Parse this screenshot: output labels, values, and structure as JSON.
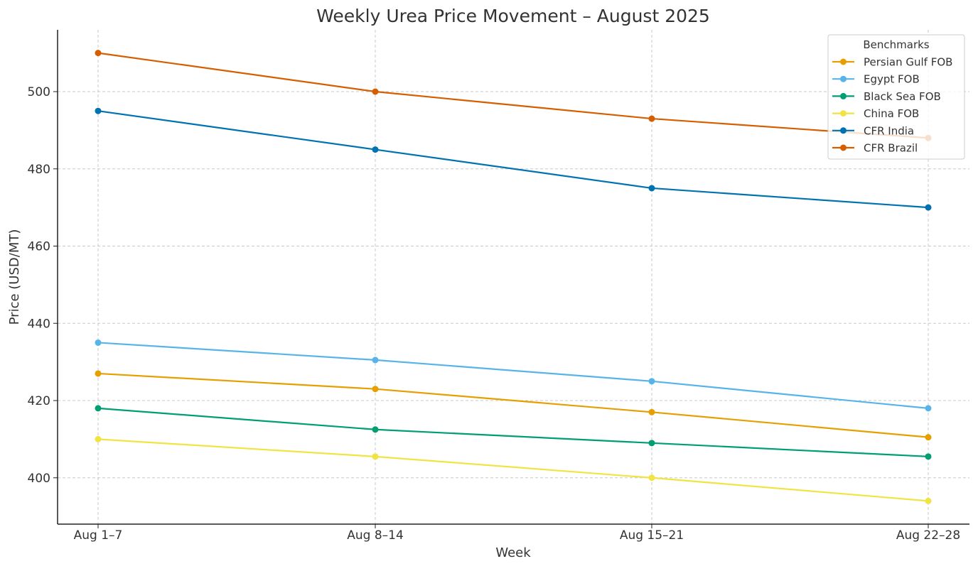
{
  "chart_data": {
    "type": "line",
    "title": "Weekly Urea Price Movement – August 2025",
    "xlabel": "Week",
    "ylabel": "Price (USD/MT)",
    "categories": [
      "Aug 1–7",
      "Aug 8–14",
      "Aug 15–21",
      "Aug 22–28"
    ],
    "ylim": [
      388,
      516
    ],
    "yticks": [
      400,
      420,
      440,
      460,
      480,
      500
    ],
    "grid": true,
    "legend": {
      "title": "Benchmarks",
      "placement": "top-right"
    },
    "series": [
      {
        "name": "Persian Gulf FOB",
        "color": "#E69F00",
        "values": [
          427,
          423,
          417,
          410.5
        ]
      },
      {
        "name": "Egypt FOB",
        "color": "#56B4E9",
        "values": [
          435,
          430.5,
          425,
          418
        ]
      },
      {
        "name": "Black Sea FOB",
        "color": "#009E73",
        "values": [
          418,
          412.5,
          409,
          405.5
        ]
      },
      {
        "name": "China FOB",
        "color": "#F0E442",
        "values": [
          410,
          405.5,
          400,
          394
        ]
      },
      {
        "name": "CFR India",
        "color": "#0072B2",
        "values": [
          495,
          485,
          475,
          470
        ]
      },
      {
        "name": "CFR Brazil",
        "color": "#D55E00",
        "values": [
          510,
          500,
          493,
          488
        ]
      }
    ]
  }
}
